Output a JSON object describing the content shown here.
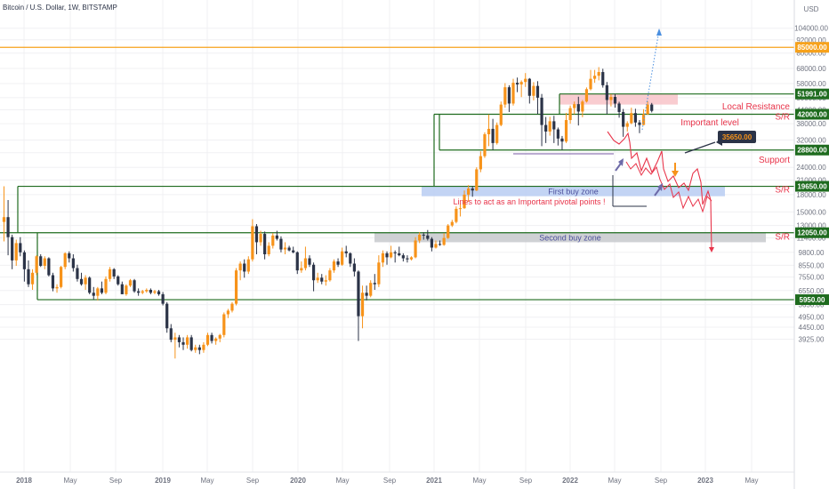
{
  "header": {
    "title": "Bitcoin / U.S. Dollar, 1W, BITSTAMP"
  },
  "colors": {
    "up": "#f7931a",
    "down": "#2b3347",
    "green_line": "#1e6b1e",
    "orange_line": "#f7a21b",
    "annotation_red": "#e8344a",
    "grid": "#f0f0f3",
    "background": "#ffffff"
  },
  "chart_data": {
    "type": "candlestick",
    "title": "Bitcoin / U.S. Dollar, 1W, BITSTAMP",
    "y_scale": "log",
    "y_unit": "USD",
    "ylim": [
      3700,
      106000
    ],
    "x_ticks": [
      "2018",
      "May",
      "Sep",
      "2019",
      "May",
      "Sep",
      "2020",
      "May",
      "Sep",
      "2021",
      "May",
      "Sep",
      "2022",
      "May",
      "Sep",
      "2023",
      "May"
    ],
    "y_ticks": [
      104000,
      92000,
      80000,
      68000,
      58000,
      50000,
      44000,
      38000,
      32000,
      28000,
      24000,
      21000,
      18000,
      15000,
      13000,
      11400,
      9800,
      8550,
      7550,
      6550,
      5650,
      4950,
      4450,
      3925
    ],
    "price_tags": [
      {
        "label": "85000.00",
        "value": 85000,
        "color": "#f7a21b"
      },
      {
        "label": "51991.00",
        "value": 51991,
        "color": "#1e6b1e"
      },
      {
        "label": "42000.00",
        "value": 42000,
        "color": "#1e6b1e"
      },
      {
        "label": "28800.00",
        "value": 28800,
        "color": "#1e6b1e"
      },
      {
        "label": "19650.00",
        "value": 19650,
        "color": "#1e6b1e"
      },
      {
        "label": "12050.00",
        "value": 12050,
        "color": "#1e6b1e"
      },
      {
        "label": "5950.00",
        "value": 5950,
        "color": "#1e6b1e"
      }
    ],
    "price_flag": {
      "label": "35650.00",
      "value": 35650
    },
    "annotations": [
      {
        "text": "Local Resistance",
        "value": 45500
      },
      {
        "text": "S/R",
        "value": 40800
      },
      {
        "text": "Important level",
        "value": 38400
      },
      {
        "text": "Support",
        "value": 25900
      },
      {
        "text": "S/R",
        "value": 18900
      },
      {
        "text": "S/R",
        "value": 11550
      }
    ],
    "zones": [
      {
        "label": "First buy zone",
        "low": 17700,
        "high": 19650,
        "color": "#b9cdf2"
      },
      {
        "label": "Second buy zone",
        "low": 10900,
        "high": 12050,
        "color": "#c7c9cd"
      },
      {
        "label": "",
        "low": 46500,
        "high": 51991,
        "color": "#f8c3c8"
      }
    ],
    "note": "Lines to act as an Important pivotal points !",
    "series": [
      {
        "values": [
          [
            13500,
            19650,
            11000,
            14200
          ],
          [
            14200,
            17000,
            9500,
            11500
          ],
          [
            11500,
            11800,
            8200,
            9000
          ],
          [
            9000,
            11200,
            8500,
            10800
          ],
          [
            10800,
            11500,
            9400,
            9800
          ],
          [
            9800,
            10000,
            7200,
            8200
          ],
          [
            8200,
            9000,
            6800,
            7000
          ],
          [
            7000,
            8200,
            6600,
            7900
          ],
          [
            7900,
            9500,
            7700,
            9400
          ],
          [
            9400,
            9600,
            8400,
            8500
          ],
          [
            8500,
            9400,
            8200,
            9200
          ],
          [
            9200,
            9300,
            7600,
            7700
          ],
          [
            7700,
            7900,
            6500,
            6700
          ],
          [
            6700,
            7000,
            6400,
            6800
          ],
          [
            6800,
            8500,
            6700,
            8400
          ],
          [
            8400,
            9800,
            8200,
            9700
          ],
          [
            9700,
            9900,
            8800,
            9200
          ],
          [
            9200,
            9600,
            8000,
            8300
          ],
          [
            8300,
            8600,
            7200,
            7400
          ],
          [
            7400,
            7900,
            6900,
            7000
          ],
          [
            7000,
            7700,
            6600,
            7500
          ],
          [
            7500,
            7600,
            6300,
            6400
          ],
          [
            6400,
            6800,
            5950,
            6200
          ],
          [
            6200,
            6800,
            5900,
            6700
          ],
          [
            6700,
            7200,
            6300,
            6400
          ],
          [
            6400,
            7600,
            6300,
            7400
          ],
          [
            7400,
            8400,
            7200,
            8200
          ],
          [
            8200,
            8300,
            7400,
            7600
          ],
          [
            7600,
            7700,
            6900,
            7000
          ],
          [
            7000,
            7200,
            6500,
            6300
          ],
          [
            6300,
            7000,
            6200,
            6900
          ],
          [
            6900,
            7400,
            6800,
            7300
          ],
          [
            7300,
            7400,
            6400,
            6500
          ],
          [
            6500,
            6700,
            6200,
            6400
          ],
          [
            6400,
            6600,
            6300,
            6500
          ],
          [
            6500,
            6700,
            6400,
            6600
          ],
          [
            6600,
            6700,
            6300,
            6400
          ],
          [
            6400,
            6600,
            6300,
            6500
          ],
          [
            6500,
            6600,
            6200,
            6300
          ],
          [
            6300,
            6450,
            5600,
            5700
          ],
          [
            5700,
            5800,
            4200,
            4400
          ],
          [
            4400,
            4600,
            3800,
            3900
          ],
          [
            3900,
            4200,
            3200,
            4000
          ],
          [
            4000,
            4100,
            3600,
            3800
          ],
          [
            3800,
            4000,
            3500,
            3700
          ],
          [
            3700,
            4100,
            3550,
            4000
          ],
          [
            4000,
            4100,
            3450,
            3500
          ],
          [
            3500,
            3700,
            3400,
            3600
          ],
          [
            3600,
            3700,
            3350,
            3500
          ],
          [
            3500,
            3800,
            3400,
            3700
          ],
          [
            3700,
            4200,
            3650,
            4100
          ],
          [
            4100,
            4200,
            3750,
            3850
          ],
          [
            3850,
            4000,
            3700,
            3950
          ],
          [
            3950,
            4150,
            3800,
            4100
          ],
          [
            4100,
            5200,
            4000,
            5100
          ],
          [
            5100,
            5400,
            4900,
            5300
          ],
          [
            5300,
            5800,
            5200,
            5700
          ],
          [
            5700,
            8300,
            5600,
            8100
          ],
          [
            8100,
            8900,
            7300,
            8700
          ],
          [
            8700,
            9100,
            7500,
            8000
          ],
          [
            8000,
            9400,
            7800,
            9100
          ],
          [
            9100,
            13900,
            8900,
            12900
          ],
          [
            12900,
            13200,
            9600,
            10900
          ],
          [
            10900,
            12300,
            10500,
            11900
          ],
          [
            11900,
            12200,
            9100,
            9600
          ],
          [
            9600,
            10900,
            9400,
            10500
          ],
          [
            10500,
            12000,
            10200,
            11700
          ],
          [
            11700,
            12300,
            11100,
            11300
          ],
          [
            11300,
            11600,
            9800,
            10100
          ],
          [
            10100,
            10900,
            9600,
            10300
          ],
          [
            10300,
            10500,
            9900,
            10000
          ],
          [
            10000,
            10400,
            9700,
            9800
          ],
          [
            9800,
            9900,
            7800,
            8100
          ],
          [
            8100,
            8900,
            7900,
            8300
          ],
          [
            8300,
            10400,
            8100,
            9200
          ],
          [
            9200,
            9500,
            8400,
            8600
          ],
          [
            8600,
            8800,
            6500,
            7300
          ],
          [
            7300,
            7900,
            7100,
            7500
          ],
          [
            7500,
            7800,
            7000,
            7200
          ],
          [
            7200,
            7700,
            6900,
            7300
          ],
          [
            7300,
            8300,
            7200,
            8100
          ],
          [
            8100,
            9100,
            7900,
            8900
          ],
          [
            8900,
            9200,
            8400,
            8600
          ],
          [
            8600,
            10300,
            8500,
            9900
          ],
          [
            9900,
            10500,
            9300,
            9700
          ],
          [
            9700,
            9800,
            8400,
            8700
          ],
          [
            8700,
            9200,
            7600,
            8000
          ],
          [
            8000,
            8100,
            3850,
            5000
          ],
          [
            5000,
            6900,
            4400,
            6400
          ],
          [
            6400,
            6900,
            5900,
            6200
          ],
          [
            6200,
            7300,
            6100,
            7100
          ],
          [
            7100,
            7800,
            6600,
            7000
          ],
          [
            7000,
            9500,
            6800,
            8800
          ],
          [
            8800,
            10000,
            8400,
            9700
          ],
          [
            9700,
            9900,
            8600,
            9300
          ],
          [
            9300,
            10500,
            9200,
            9800
          ],
          [
            9800,
            10000,
            8800,
            9700
          ],
          [
            9700,
            10400,
            9400,
            9500
          ],
          [
            9500,
            9700,
            8900,
            9200
          ],
          [
            9200,
            9500,
            8800,
            9100
          ],
          [
            9100,
            9400,
            9000,
            9300
          ],
          [
            9300,
            11500,
            9200,
            11100
          ],
          [
            11100,
            12100,
            10800,
            11800
          ],
          [
            11800,
            12100,
            11200,
            11700
          ],
          [
            11700,
            12400,
            11100,
            11300
          ],
          [
            11300,
            11500,
            9900,
            10300
          ],
          [
            10300,
            11100,
            10200,
            10700
          ],
          [
            10700,
            11100,
            10500,
            10600
          ],
          [
            10600,
            12000,
            10500,
            11400
          ],
          [
            11400,
            13200,
            11300,
            13000
          ],
          [
            13000,
            13800,
            12800,
            13500
          ],
          [
            13500,
            15900,
            13300,
            15500
          ],
          [
            15500,
            16400,
            14300,
            15600
          ],
          [
            15600,
            18800,
            15500,
            18000
          ],
          [
            18000,
            19900,
            16700,
            19200
          ],
          [
            19200,
            19700,
            17600,
            18800
          ],
          [
            18800,
            24000,
            18700,
            23500
          ],
          [
            23500,
            28400,
            22800,
            27000
          ],
          [
            27000,
            34700,
            26500,
            34000
          ],
          [
            34000,
            41900,
            30000,
            36000
          ],
          [
            36000,
            40000,
            28800,
            31000
          ],
          [
            31000,
            38500,
            30500,
            37500
          ],
          [
            37500,
            48000,
            37000,
            46500
          ],
          [
            46500,
            58300,
            45000,
            55800
          ],
          [
            55800,
            57000,
            43000,
            47000
          ],
          [
            47000,
            61000,
            46000,
            58500
          ],
          [
            58500,
            61800,
            53000,
            57500
          ],
          [
            57500,
            60000,
            50300,
            59000
          ],
          [
            59000,
            64800,
            56000,
            61000
          ],
          [
            61000,
            61500,
            47000,
            51000
          ],
          [
            51000,
            58900,
            48600,
            56600
          ],
          [
            56600,
            59500,
            42000,
            50000
          ],
          [
            50000,
            52000,
            30000,
            37500
          ],
          [
            37500,
            40800,
            31000,
            35000
          ],
          [
            35000,
            40900,
            33500,
            39000
          ],
          [
            39000,
            41300,
            31000,
            35800
          ],
          [
            35800,
            36500,
            30200,
            32500
          ],
          [
            32500,
            33400,
            28800,
            31500
          ],
          [
            31500,
            42600,
            31000,
            39500
          ],
          [
            39500,
            46000,
            38000,
            44800
          ],
          [
            44800,
            48000,
            42000,
            46700
          ],
          [
            46700,
            50500,
            37300,
            43200
          ],
          [
            43200,
            48800,
            40700,
            48000
          ],
          [
            48000,
            55700,
            47500,
            54700
          ],
          [
            54700,
            67000,
            54000,
            61000
          ],
          [
            61000,
            67000,
            58500,
            63000
          ],
          [
            63000,
            69000,
            60000,
            65500
          ],
          [
            65500,
            67800,
            55600,
            57000
          ],
          [
            57000,
            59000,
            42000,
            48800
          ],
          [
            48800,
            51900,
            45600,
            50400
          ],
          [
            50400,
            52000,
            45000,
            47000
          ],
          [
            47000,
            47900,
            40500,
            43000
          ],
          [
            43000,
            44400,
            33100,
            36800
          ],
          [
            36800,
            39000,
            35000,
            38200
          ],
          [
            38200,
            45000,
            37800,
            42500
          ],
          [
            42500,
            44500,
            36800,
            38500
          ],
          [
            38500,
            39500,
            34400,
            37500
          ],
          [
            37500,
            44300,
            37400,
            42000
          ],
          [
            42000,
            48200,
            41800,
            46500
          ],
          [
            46500,
            47300,
            42800,
            43500
          ]
        ]
      }
    ]
  }
}
